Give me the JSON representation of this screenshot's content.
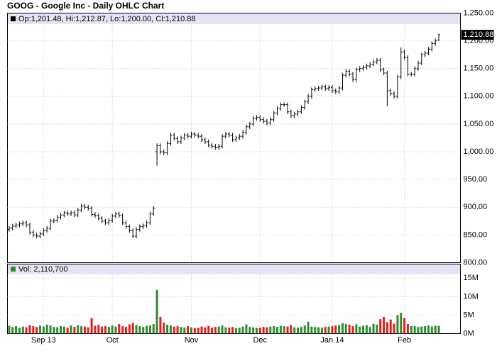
{
  "chart_data": {
    "type": "ohlc",
    "title": "GOOG - Google Inc - Daily OHLC Chart",
    "legend_text": "Op:1,201.48, Hi:1,212.87, Lo:1,200.00, Cl:1,210.88",
    "last_price_label": "1,210.88",
    "volume_legend": "Vol: 2,110,700",
    "bar_color": "#000000",
    "up_color": "#2e8b2e",
    "down_color": "#e02020",
    "grid": true,
    "open": [
      860,
      862,
      866,
      868,
      870,
      872,
      868,
      855,
      850,
      848,
      852,
      858,
      862,
      875,
      876,
      882,
      886,
      890,
      888,
      890,
      886,
      895,
      902,
      900,
      898,
      887,
      885,
      880,
      875,
      872,
      876,
      884,
      888,
      885,
      872,
      865,
      858,
      848,
      860,
      865,
      867,
      872,
      888,
      1000,
      1011,
      1000,
      998,
      1015,
      1030,
      1024,
      1018,
      1025,
      1030,
      1028,
      1032,
      1030,
      1028,
      1022,
      1018,
      1012,
      1010,
      1008,
      1010,
      1028,
      1032,
      1030,
      1022,
      1025,
      1028,
      1035,
      1045,
      1050,
      1060,
      1062,
      1058,
      1055,
      1052,
      1058,
      1070,
      1078,
      1085,
      1085,
      1072,
      1065,
      1068,
      1072,
      1080,
      1090,
      1100,
      1112,
      1114,
      1115,
      1117,
      1114,
      1116,
      1110,
      1108,
      1115,
      1138,
      1145,
      1140,
      1130,
      1148,
      1150,
      1152,
      1155,
      1158,
      1162,
      1165,
      1148,
      1142,
      1110,
      1105,
      1100,
      1135,
      1180,
      1170,
      1140,
      1140,
      1150,
      1160,
      1175,
      1178,
      1185,
      1195,
      1201.48
    ],
    "high": [
      866,
      870,
      872,
      874,
      876,
      876,
      872,
      859,
      854,
      856,
      862,
      866,
      879,
      880,
      886,
      890,
      894,
      894,
      894,
      894,
      899,
      906,
      906,
      904,
      902,
      891,
      889,
      884,
      879,
      880,
      888,
      892,
      892,
      889,
      876,
      869,
      862,
      864,
      869,
      871,
      876,
      892,
      902,
      1015,
      1015,
      1004,
      1019,
      1034,
      1034,
      1028,
      1029,
      1034,
      1034,
      1036,
      1036,
      1034,
      1032,
      1026,
      1022,
      1016,
      1014,
      1014,
      1032,
      1036,
      1036,
      1034,
      1029,
      1032,
      1039,
      1049,
      1054,
      1064,
      1066,
      1066,
      1062,
      1059,
      1062,
      1074,
      1082,
      1089,
      1089,
      1089,
      1076,
      1072,
      1076,
      1084,
      1094,
      1104,
      1116,
      1118,
      1119,
      1121,
      1121,
      1120,
      1120,
      1114,
      1119,
      1142,
      1149,
      1149,
      1144,
      1152,
      1154,
      1156,
      1159,
      1162,
      1166,
      1169,
      1169,
      1152,
      1146,
      1114,
      1109,
      1139,
      1188,
      1184,
      1174,
      1144,
      1154,
      1164,
      1179,
      1182,
      1189,
      1199,
      1204,
      1212.87
    ],
    "low": [
      856,
      858,
      862,
      864,
      866,
      864,
      851,
      846,
      844,
      844,
      848,
      854,
      858,
      871,
      872,
      878,
      882,
      884,
      884,
      882,
      882,
      891,
      896,
      894,
      883,
      881,
      876,
      871,
      868,
      868,
      872,
      880,
      881,
      868,
      861,
      854,
      844,
      844,
      856,
      861,
      863,
      868,
      884,
      975,
      996,
      994,
      994,
      1011,
      1020,
      1014,
      1014,
      1021,
      1024,
      1024,
      1026,
      1024,
      1018,
      1014,
      1008,
      1006,
      1004,
      1004,
      1006,
      1024,
      1026,
      1018,
      1018,
      1021,
      1024,
      1031,
      1041,
      1046,
      1056,
      1054,
      1051,
      1048,
      1048,
      1054,
      1066,
      1074,
      1081,
      1068,
      1061,
      1061,
      1064,
      1068,
      1076,
      1086,
      1096,
      1108,
      1110,
      1111,
      1110,
      1110,
      1106,
      1104,
      1104,
      1111,
      1134,
      1136,
      1126,
      1126,
      1144,
      1146,
      1148,
      1151,
      1154,
      1158,
      1144,
      1138,
      1082,
      1101,
      1096,
      1096,
      1131,
      1166,
      1136,
      1136,
      1136,
      1146,
      1156,
      1171,
      1174,
      1181,
      1191,
      1200
    ],
    "close": [
      862,
      866,
      868,
      870,
      872,
      868,
      855,
      850,
      848,
      852,
      858,
      862,
      875,
      876,
      882,
      886,
      890,
      888,
      890,
      886,
      895,
      902,
      900,
      898,
      887,
      885,
      880,
      875,
      872,
      876,
      884,
      888,
      885,
      872,
      865,
      858,
      848,
      860,
      865,
      867,
      872,
      888,
      898,
      1011,
      1000,
      998,
      1015,
      1030,
      1024,
      1018,
      1025,
      1030,
      1028,
      1032,
      1030,
      1028,
      1022,
      1018,
      1012,
      1010,
      1008,
      1010,
      1028,
      1032,
      1030,
      1022,
      1025,
      1028,
      1035,
      1045,
      1050,
      1060,
      1062,
      1058,
      1055,
      1052,
      1058,
      1070,
      1078,
      1085,
      1085,
      1072,
      1065,
      1068,
      1072,
      1080,
      1090,
      1100,
      1112,
      1114,
      1115,
      1117,
      1114,
      1116,
      1110,
      1108,
      1115,
      1138,
      1145,
      1140,
      1130,
      1148,
      1150,
      1152,
      1155,
      1158,
      1162,
      1165,
      1148,
      1142,
      1110,
      1105,
      1100,
      1135,
      1180,
      1170,
      1140,
      1140,
      1150,
      1160,
      1175,
      1178,
      1185,
      1195,
      1200,
      1210.88
    ],
    "volume": [
      2.1,
      1.8,
      2.0,
      1.6,
      1.9,
      1.7,
      2.3,
      2.0,
      1.8,
      2.2,
      1.9,
      2.4,
      2.2,
      1.8,
      1.7,
      2.0,
      1.9,
      1.6,
      2.2,
      1.8,
      2.3,
      2.0,
      1.9,
      1.7,
      4.2,
      2.1,
      2.4,
      1.9,
      2.0,
      1.8,
      2.2,
      1.9,
      2.6,
      2.0,
      1.8,
      2.5,
      2.9,
      2.3,
      2.0,
      1.8,
      2.1,
      2.2,
      2.6,
      11.8,
      4.5,
      3.0,
      2.4,
      2.2,
      1.9,
      2.0,
      1.8,
      1.6,
      2.0,
      1.7,
      1.5,
      1.6,
      1.9,
      1.7,
      2.1,
      1.6,
      1.8,
      1.9,
      2.2,
      1.7,
      1.6,
      1.8,
      1.5,
      1.6,
      1.9,
      2.5,
      1.8,
      1.7,
      1.5,
      1.6,
      1.8,
      1.7,
      1.9,
      2.0,
      1.8,
      2.1,
      2.0,
      1.9,
      2.3,
      1.7,
      1.6,
      1.8,
      2.2,
      3.2,
      1.9,
      1.8,
      1.7,
      1.6,
      1.8,
      1.9,
      2.0,
      2.2,
      2.3,
      2.8,
      2.6,
      2.4,
      2.0,
      2.5,
      1.9,
      2.1,
      2.3,
      1.8,
      2.6,
      2.4,
      3.9,
      4.5,
      3.1,
      3.8,
      2.7,
      5.0,
      5.6,
      4.2,
      2.6,
      2.1,
      2.0,
      1.8,
      1.9,
      2.0,
      2.2,
      1.9,
      2.1,
      2.1107
    ],
    "xlim": [
      -0.5,
      131.3
    ],
    "xticks": [
      {
        "value": 10,
        "label": "Sep 13"
      },
      {
        "value": 30,
        "label": "Oct"
      },
      {
        "value": 53,
        "label": "Nov"
      },
      {
        "value": 73,
        "label": "Dec"
      },
      {
        "value": 94,
        "label": "Jan 14"
      },
      {
        "value": 115,
        "label": "Feb"
      }
    ],
    "ylim": [
      800,
      1250
    ],
    "yticks": [
      {
        "value": 800,
        "label": "800.00"
      },
      {
        "value": 850,
        "label": "850.00"
      },
      {
        "value": 900,
        "label": "900.00"
      },
      {
        "value": 950,
        "label": "950.00"
      },
      {
        "value": 1000,
        "label": "1,000.00"
      },
      {
        "value": 1050,
        "label": "1,050.00"
      },
      {
        "value": 1100,
        "label": "1,100.00"
      },
      {
        "value": 1150,
        "label": "1,150.00"
      },
      {
        "value": 1200,
        "label": "1,200.00"
      },
      {
        "value": 1250,
        "label": "1,250.00"
      }
    ],
    "y2lim": [
      0,
      18.8
    ],
    "y2ticks": [
      {
        "value": 0,
        "label": "0M"
      },
      {
        "value": 5,
        "label": "5M"
      },
      {
        "value": 10,
        "label": "10M"
      },
      {
        "value": 15,
        "label": "15M"
      }
    ]
  }
}
